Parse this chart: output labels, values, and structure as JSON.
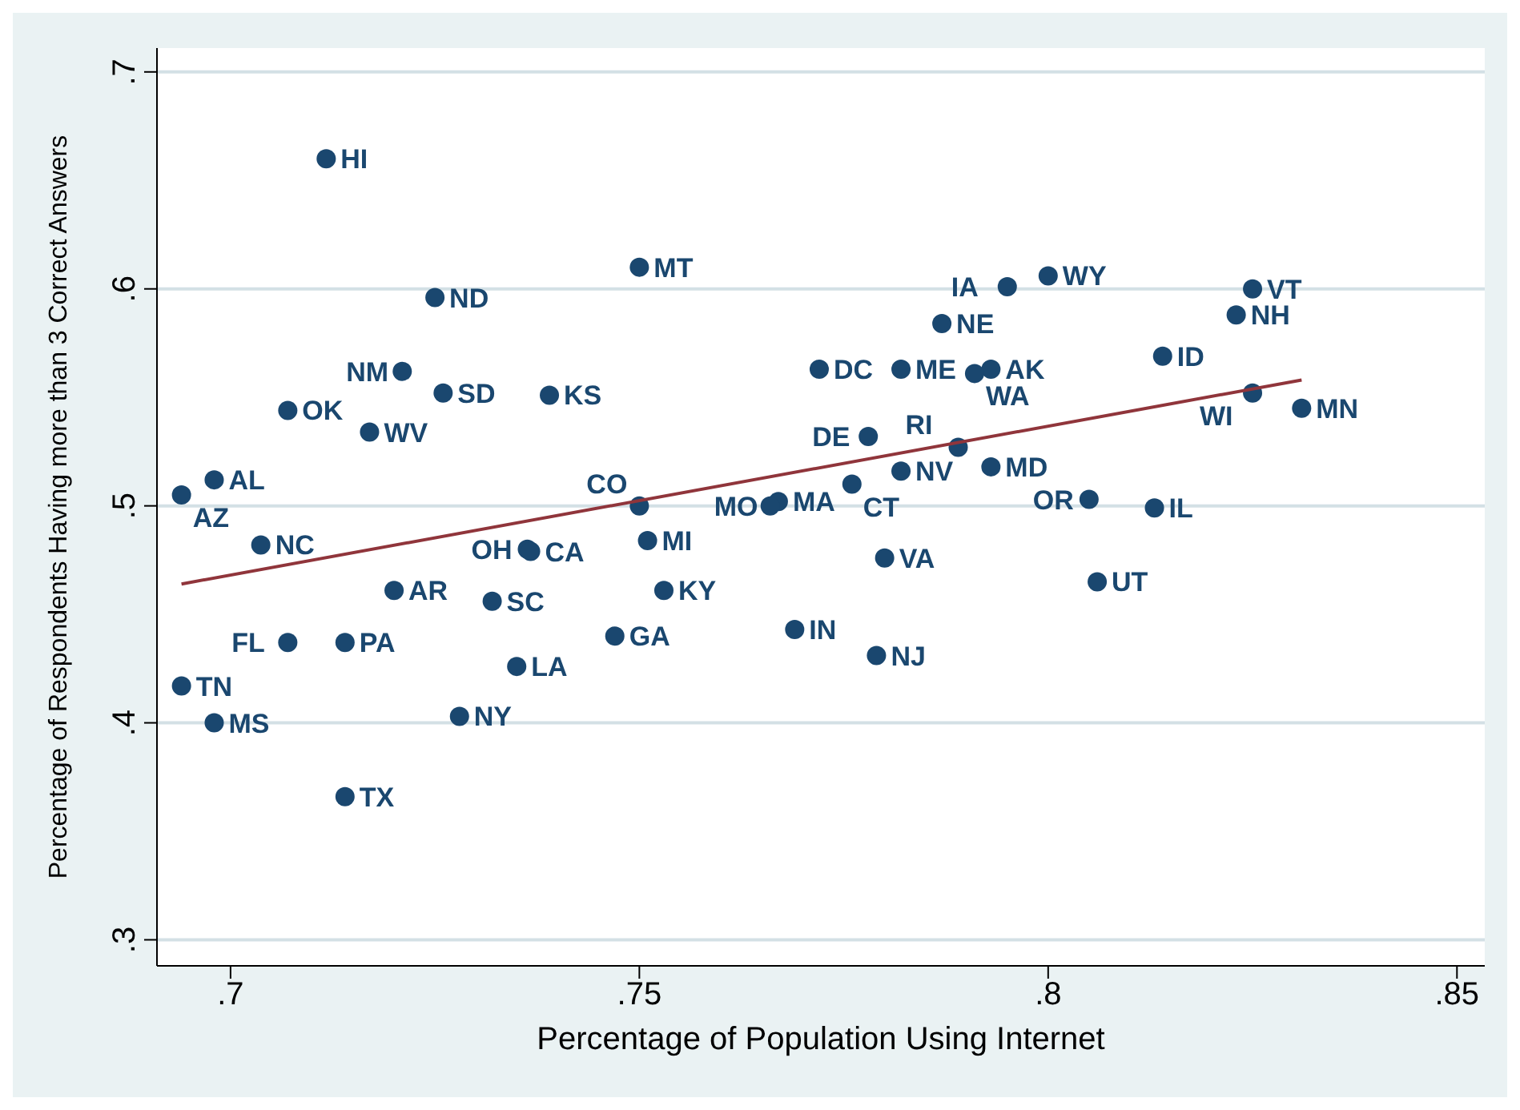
{
  "chart_data": {
    "type": "scatter",
    "xlabel": "Percentage of Population Using Internet",
    "ylabel": "Percentage of Respondents Having more than 3 Correct Answers",
    "xlim": [
      0.691,
      0.8534
    ],
    "ylim": [
      0.288,
      0.711
    ],
    "xticks": [
      {
        "value": 0.7,
        "label": ".7"
      },
      {
        "value": 0.75,
        "label": ".75"
      },
      {
        "value": 0.8,
        "label": ".8"
      },
      {
        "value": 0.85,
        "label": ".85"
      }
    ],
    "yticks": [
      {
        "value": 0.3,
        "label": ".3"
      },
      {
        "value": 0.4,
        "label": ".4"
      },
      {
        "value": 0.5,
        "label": ".5"
      },
      {
        "value": 0.6,
        "label": ".6"
      },
      {
        "value": 0.7,
        "label": ".7"
      }
    ],
    "grid": "y",
    "marker": "circle",
    "series": [
      {
        "color": "#1a476f",
        "x": [
          0.7117,
          0.75,
          0.725,
          0.721,
          0.726,
          0.739,
          0.707,
          0.717,
          0.698,
          0.694,
          0.75,
          0.767,
          0.766,
          0.7037,
          0.7363,
          0.7367,
          0.751,
          0.72,
          0.732,
          0.753,
          0.707,
          0.714,
          0.694,
          0.698,
          0.728,
          0.714,
          0.747,
          0.735,
          0.769,
          0.779,
          0.78,
          0.806,
          0.805,
          0.813,
          0.793,
          0.789,
          0.782,
          0.776,
          0.778,
          0.772,
          0.782,
          0.793,
          0.791,
          0.787,
          0.795,
          0.8,
          0.825,
          0.823,
          0.814,
          0.825,
          0.831
        ],
        "values": [
          0.66,
          0.61,
          0.596,
          0.562,
          0.552,
          0.551,
          0.544,
          0.534,
          0.512,
          0.505,
          0.5,
          0.502,
          0.5,
          0.482,
          0.48,
          0.479,
          0.484,
          0.461,
          0.456,
          0.461,
          0.437,
          0.437,
          0.417,
          0.4,
          0.403,
          0.366,
          0.44,
          0.426,
          0.443,
          0.431,
          0.476,
          0.465,
          0.503,
          0.499,
          0.518,
          0.527,
          0.516,
          0.51,
          0.532,
          0.563,
          0.563,
          0.563,
          0.561,
          0.584,
          0.601,
          0.606,
          0.6,
          0.588,
          0.569,
          0.552,
          0.545
        ]
      },
      {
        "type": "line",
        "marker": "none",
        "color": "#90353b",
        "x": [
          0.694,
          0.831
        ],
        "values": [
          0.464,
          0.558
        ]
      }
    ],
    "annotations": [
      {
        "text": "HI",
        "x": 0.7117,
        "y": 0.66
      },
      {
        "text": "MT",
        "x": 0.75,
        "y": 0.61
      },
      {
        "text": "ND",
        "x": 0.725,
        "y": 0.596
      },
      {
        "text": "NM",
        "x": 0.721,
        "y": 0.562
      },
      {
        "text": "SD",
        "x": 0.726,
        "y": 0.552
      },
      {
        "text": "KS",
        "x": 0.739,
        "y": 0.551
      },
      {
        "text": "OK",
        "x": 0.707,
        "y": 0.544
      },
      {
        "text": "WV",
        "x": 0.717,
        "y": 0.534
      },
      {
        "text": "AL",
        "x": 0.698,
        "y": 0.512
      },
      {
        "text": "AZ",
        "x": 0.694,
        "y": 0.505
      },
      {
        "text": "CO",
        "x": 0.75,
        "y": 0.5
      },
      {
        "text": "MA",
        "x": 0.767,
        "y": 0.502
      },
      {
        "text": "MO",
        "x": 0.766,
        "y": 0.5
      },
      {
        "text": "NC",
        "x": 0.7037,
        "y": 0.482
      },
      {
        "text": "OH",
        "x": 0.7363,
        "y": 0.48
      },
      {
        "text": "CA",
        "x": 0.7367,
        "y": 0.479
      },
      {
        "text": "MI",
        "x": 0.751,
        "y": 0.484
      },
      {
        "text": "AR",
        "x": 0.72,
        "y": 0.461
      },
      {
        "text": "SC",
        "x": 0.732,
        "y": 0.456
      },
      {
        "text": "KY",
        "x": 0.753,
        "y": 0.461
      },
      {
        "text": "FL",
        "x": 0.707,
        "y": 0.437
      },
      {
        "text": "PA",
        "x": 0.714,
        "y": 0.437
      },
      {
        "text": "TN",
        "x": 0.694,
        "y": 0.417
      },
      {
        "text": "MS",
        "x": 0.698,
        "y": 0.4
      },
      {
        "text": "NY",
        "x": 0.728,
        "y": 0.403
      },
      {
        "text": "TX",
        "x": 0.714,
        "y": 0.366
      },
      {
        "text": "GA",
        "x": 0.747,
        "y": 0.44
      },
      {
        "text": "LA",
        "x": 0.735,
        "y": 0.426
      },
      {
        "text": "IN",
        "x": 0.769,
        "y": 0.443
      },
      {
        "text": "NJ",
        "x": 0.779,
        "y": 0.431
      },
      {
        "text": "VA",
        "x": 0.78,
        "y": 0.476
      },
      {
        "text": "UT",
        "x": 0.806,
        "y": 0.465
      },
      {
        "text": "OR",
        "x": 0.805,
        "y": 0.503
      },
      {
        "text": "IL",
        "x": 0.813,
        "y": 0.499
      },
      {
        "text": "MD",
        "x": 0.793,
        "y": 0.518
      },
      {
        "text": "RI",
        "x": 0.789,
        "y": 0.527
      },
      {
        "text": "NV",
        "x": 0.782,
        "y": 0.516
      },
      {
        "text": "CT",
        "x": 0.776,
        "y": 0.51
      },
      {
        "text": "DE",
        "x": 0.778,
        "y": 0.532
      },
      {
        "text": "DC",
        "x": 0.772,
        "y": 0.563
      },
      {
        "text": "ME",
        "x": 0.782,
        "y": 0.563
      },
      {
        "text": "AK",
        "x": 0.793,
        "y": 0.563
      },
      {
        "text": "WA",
        "x": 0.791,
        "y": 0.561
      },
      {
        "text": "NE",
        "x": 0.787,
        "y": 0.584
      },
      {
        "text": "IA",
        "x": 0.795,
        "y": 0.601
      },
      {
        "text": "WY",
        "x": 0.8,
        "y": 0.606
      },
      {
        "text": "VT",
        "x": 0.825,
        "y": 0.6
      },
      {
        "text": "NH",
        "x": 0.823,
        "y": 0.588
      },
      {
        "text": "ID",
        "x": 0.814,
        "y": 0.569
      },
      {
        "text": "WI",
        "x": 0.825,
        "y": 0.552
      },
      {
        "text": "MN",
        "x": 0.831,
        "y": 0.545
      }
    ]
  }
}
